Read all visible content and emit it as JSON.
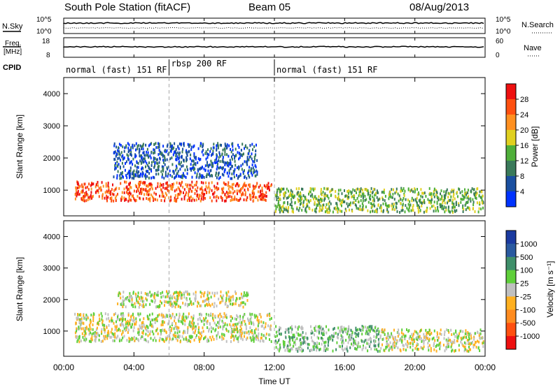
{
  "header": {
    "station": "South Pole Station (fitACF)",
    "beam": "Beam 05",
    "date": "08/Aug/2013"
  },
  "top_panels": {
    "nsky_label": "N.Sky",
    "nsky_top": "10^5",
    "nsky_bottom": "10^0",
    "nsearch_label": "N.Search",
    "nsearch_top": "10^5",
    "nsearch_bottom": "10^0",
    "freq_label_1": "Freq.",
    "freq_label_2": "[MHz]",
    "freq_top": "18",
    "freq_bottom": "8",
    "nave_label": "Nave",
    "nave_top": "60",
    "nave_bottom": "0",
    "cpid_label": "CPID",
    "cpid_segments": [
      {
        "label": "normal (fast) 151 RF",
        "start_hour": 0,
        "end_hour": 6
      },
      {
        "label": "rbsp 200 RF",
        "start_hour": 6,
        "end_hour": 12
      },
      {
        "label": "normal (fast) 151 RF",
        "start_hour": 12,
        "end_hour": 24
      }
    ]
  },
  "x_axis": {
    "label": "Time UT",
    "ticks": [
      "00:00",
      "04:00",
      "08:00",
      "12:00",
      "16:00",
      "20:00",
      "00:00"
    ],
    "tick_hours": [
      0,
      4,
      8,
      12,
      16,
      20,
      24
    ]
  },
  "power_panel": {
    "ylabel": "Slant Range [km]",
    "yticks": [
      "1000",
      "2000",
      "3000",
      "4000"
    ],
    "colorbar_label": "Power [dB]",
    "colorbar_ticks": [
      "28",
      "24",
      "20",
      "16",
      "12",
      "8",
      "4"
    ],
    "colors": [
      "#0033ff",
      "#1a4fa0",
      "#3a7a5a",
      "#4faf3a",
      "#e0d020",
      "#ff9020",
      "#ff5010",
      "#ee1010"
    ]
  },
  "velocity_panel": {
    "ylabel": "Slant Range [km]",
    "yticks": [
      "1000",
      "2000",
      "3000",
      "4000"
    ],
    "colorbar_label": "Velocity [m s⁻¹]",
    "colorbar_ticks": [
      "1000",
      "500",
      "100",
      "25",
      "-25",
      "-100",
      "-500",
      "-1000"
    ],
    "colors": [
      "#ee1010",
      "#ff5010",
      "#ff8c20",
      "#ffb020",
      "#c0c0c0",
      "#5fcf3a",
      "#3f8f6a",
      "#2a5aa0",
      "#1a3aa0"
    ]
  },
  "chart_data": {
    "type": "heatmap",
    "title": "South Pole Station (fitACF)   Beam 05   08/Aug/2013",
    "xlabel": "Time UT",
    "ylabel": "Slant Range [km]",
    "xlim": [
      0,
      24
    ],
    "ylim": [
      200,
      4500
    ],
    "panels": [
      {
        "name": "Power [dB]",
        "colorbar_range": [
          0,
          30
        ],
        "echo_regions": [
          {
            "start_hour": 0.6,
            "end_hour": 11.8,
            "range_km": [
              700,
              1300
            ],
            "value": 24
          },
          {
            "start_hour": 2.8,
            "end_hour": 11.0,
            "range_km": [
              1400,
              2500
            ],
            "value": 6
          },
          {
            "start_hour": 12.0,
            "end_hour": 23.9,
            "range_km": [
              350,
              1100
            ],
            "value": 12
          }
        ]
      },
      {
        "name": "Velocity [m s-1]",
        "colorbar_range": [
          -1000,
          1000
        ],
        "echo_regions": [
          {
            "start_hour": 0.6,
            "end_hour": 11.8,
            "range_km": [
              700,
              1600
            ],
            "value": -100
          },
          {
            "start_hour": 3.0,
            "end_hour": 10.5,
            "range_km": [
              1800,
              2300
            ],
            "value": 0
          },
          {
            "start_hour": 12.0,
            "end_hour": 18.0,
            "range_km": [
              400,
              1200
            ],
            "value": 200
          },
          {
            "start_hour": 18.0,
            "end_hour": 23.9,
            "range_km": [
              400,
              1100
            ],
            "value": -100
          }
        ]
      }
    ]
  }
}
